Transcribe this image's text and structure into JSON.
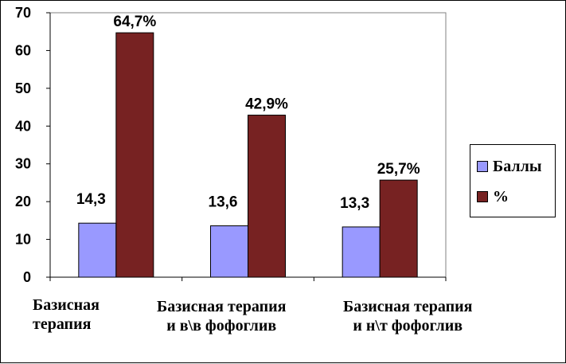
{
  "chart_data": {
    "type": "bar",
    "categories": [
      [
        "Базисная",
        "терапия"
      ],
      [
        "Базисная терапия",
        "и в\\в фофоглив"
      ],
      [
        "Базисная терапия",
        "и н\\т фофоглив"
      ]
    ],
    "series": [
      {
        "name": "Баллы",
        "values": [
          14.3,
          13.6,
          13.3
        ],
        "labels": [
          "14,3",
          "13,6",
          "13,3"
        ],
        "color": "#9999ff"
      },
      {
        "name": "%",
        "values": [
          64.7,
          42.9,
          25.7
        ],
        "labels": [
          "64,7%",
          "42,9%",
          "25,7%"
        ],
        "color": "#772222"
      }
    ],
    "ylim": [
      0,
      70
    ],
    "yticks": [
      "0",
      "10",
      "20",
      "30",
      "40",
      "50",
      "60",
      "70"
    ],
    "grid": false,
    "legend_position": "right"
  }
}
